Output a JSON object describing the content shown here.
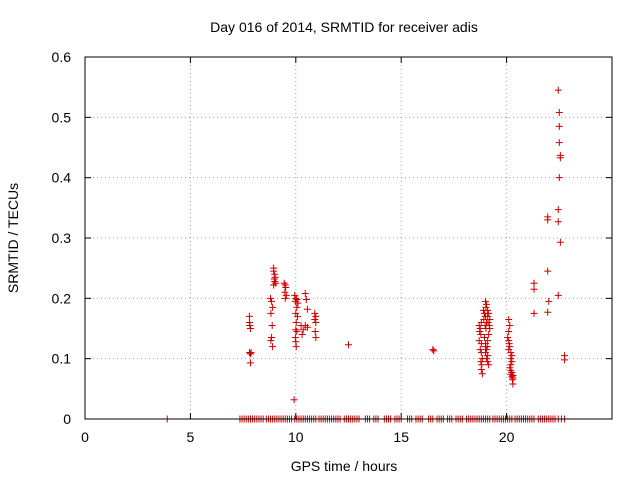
{
  "chart_data": {
    "type": "scatter",
    "title": "Day 016 of 2014, SRMTID for receiver adis",
    "xlabel": "GPS time / hours",
    "ylabel": "SRMTID / TECUs",
    "xlim": [
      0,
      25
    ],
    "ylim": [
      0,
      0.6
    ],
    "xticks": [
      "0",
      "5",
      "10",
      "15",
      "20"
    ],
    "yticks": [
      "0",
      "0.1",
      "0.2",
      "0.3",
      "0.4",
      "0.5",
      "0.6"
    ],
    "xtick_values": [
      0,
      5,
      10,
      15,
      20
    ],
    "ytick_values": [
      0,
      0.1,
      0.2,
      0.3,
      0.4,
      0.5,
      0.6
    ],
    "grid": true,
    "marker": "+",
    "color": "#cc0000",
    "series": [
      {
        "name": "SRMTID",
        "points": [
          [
            3.9,
            0
          ],
          [
            7.35,
            0
          ],
          [
            7.45,
            0
          ],
          [
            7.55,
            0
          ],
          [
            7.65,
            0
          ],
          [
            7.75,
            0
          ],
          [
            7.85,
            0
          ],
          [
            7.95,
            0
          ],
          [
            8.05,
            0
          ],
          [
            8.15,
            0
          ],
          [
            8.25,
            0
          ],
          [
            8.35,
            0
          ],
          [
            8.45,
            0
          ],
          [
            8.6,
            0
          ],
          [
            8.7,
            0
          ],
          [
            8.8,
            0
          ],
          [
            8.9,
            0
          ],
          [
            9.0,
            0
          ],
          [
            9.1,
            0
          ],
          [
            9.2,
            0
          ],
          [
            9.3,
            0
          ],
          [
            9.4,
            0
          ],
          [
            9.5,
            0
          ],
          [
            9.6,
            0
          ],
          [
            9.7,
            0
          ],
          [
            9.8,
            0
          ],
          [
            9.95,
            0
          ],
          [
            10.05,
            0
          ],
          [
            10.15,
            0
          ],
          [
            10.25,
            0
          ],
          [
            10.35,
            0
          ],
          [
            10.45,
            0
          ],
          [
            10.55,
            0
          ],
          [
            10.65,
            0
          ],
          [
            10.75,
            0
          ],
          [
            10.85,
            0
          ],
          [
            10.95,
            0
          ],
          [
            11.1,
            0
          ],
          [
            11.2,
            0
          ],
          [
            11.3,
            0
          ],
          [
            11.4,
            0
          ],
          [
            11.5,
            0
          ],
          [
            11.6,
            0
          ],
          [
            11.7,
            0
          ],
          [
            11.8,
            0
          ],
          [
            11.9,
            0
          ],
          [
            12.0,
            0
          ],
          [
            12.1,
            0
          ],
          [
            12.3,
            0
          ],
          [
            12.4,
            0
          ],
          [
            12.5,
            0
          ],
          [
            12.6,
            0
          ],
          [
            12.7,
            0
          ],
          [
            12.8,
            0
          ],
          [
            12.9,
            0
          ],
          [
            13.0,
            0
          ],
          [
            13.3,
            0
          ],
          [
            13.4,
            0
          ],
          [
            13.5,
            0
          ],
          [
            13.7,
            0
          ],
          [
            13.8,
            0
          ],
          [
            13.9,
            0
          ],
          [
            14.2,
            0
          ],
          [
            14.3,
            0
          ],
          [
            14.4,
            0
          ],
          [
            14.5,
            0
          ],
          [
            14.7,
            0
          ],
          [
            14.8,
            0
          ],
          [
            14.9,
            0
          ],
          [
            15.0,
            0
          ],
          [
            15.3,
            0
          ],
          [
            15.4,
            0
          ],
          [
            15.5,
            0
          ],
          [
            15.7,
            0
          ],
          [
            15.8,
            0
          ],
          [
            15.9,
            0
          ],
          [
            16.0,
            0
          ],
          [
            16.3,
            0
          ],
          [
            16.4,
            0
          ],
          [
            16.5,
            0
          ],
          [
            16.7,
            0
          ],
          [
            16.8,
            0
          ],
          [
            16.9,
            0
          ],
          [
            17.0,
            0
          ],
          [
            17.2,
            0
          ],
          [
            17.3,
            0
          ],
          [
            17.4,
            0
          ],
          [
            17.6,
            0
          ],
          [
            17.7,
            0
          ],
          [
            17.8,
            0
          ],
          [
            17.9,
            0
          ],
          [
            18.1,
            0
          ],
          [
            18.2,
            0
          ],
          [
            18.3,
            0
          ],
          [
            18.4,
            0
          ],
          [
            18.5,
            0
          ],
          [
            18.6,
            0
          ],
          [
            18.7,
            0
          ],
          [
            18.8,
            0
          ],
          [
            18.9,
            0
          ],
          [
            19.0,
            0
          ],
          [
            19.1,
            0
          ],
          [
            19.2,
            0
          ],
          [
            19.35,
            0
          ],
          [
            19.45,
            0
          ],
          [
            19.55,
            0
          ],
          [
            19.65,
            0
          ],
          [
            19.75,
            0
          ],
          [
            19.85,
            0
          ],
          [
            19.95,
            0
          ],
          [
            20.05,
            0
          ],
          [
            20.15,
            0
          ],
          [
            20.25,
            0
          ],
          [
            20.4,
            0
          ],
          [
            20.5,
            0
          ],
          [
            20.6,
            0
          ],
          [
            20.7,
            0
          ],
          [
            20.8,
            0
          ],
          [
            20.9,
            0
          ],
          [
            21.0,
            0
          ],
          [
            21.1,
            0
          ],
          [
            21.2,
            0
          ],
          [
            21.3,
            0
          ],
          [
            21.5,
            0
          ],
          [
            21.6,
            0
          ],
          [
            21.7,
            0
          ],
          [
            21.8,
            0
          ],
          [
            21.9,
            0
          ],
          [
            22.0,
            0
          ],
          [
            22.1,
            0
          ],
          [
            22.2,
            0
          ],
          [
            22.3,
            0
          ],
          [
            22.45,
            0
          ],
          [
            22.6,
            0
          ],
          [
            22.75,
            0
          ],
          [
            7.8,
            0.17
          ],
          [
            7.8,
            0.16
          ],
          [
            7.82,
            0.155
          ],
          [
            7.85,
            0.15
          ],
          [
            7.8,
            0.11
          ],
          [
            7.85,
            0.108
          ],
          [
            7.88,
            0.11
          ],
          [
            7.85,
            0.093
          ],
          [
            8.8,
            0.2
          ],
          [
            8.85,
            0.195
          ],
          [
            8.9,
            0.185
          ],
          [
            8.82,
            0.175
          ],
          [
            8.88,
            0.155
          ],
          [
            8.85,
            0.135
          ],
          [
            8.82,
            0.13
          ],
          [
            8.9,
            0.12
          ],
          [
            8.95,
            0.25
          ],
          [
            8.95,
            0.245
          ],
          [
            9.0,
            0.24
          ],
          [
            9.02,
            0.235
          ],
          [
            8.98,
            0.232
          ],
          [
            9.0,
            0.228
          ],
          [
            9.05,
            0.225
          ],
          [
            8.95,
            0.222
          ],
          [
            9.45,
            0.225
          ],
          [
            9.5,
            0.222
          ],
          [
            9.52,
            0.218
          ],
          [
            9.48,
            0.21
          ],
          [
            9.55,
            0.205
          ],
          [
            9.5,
            0.2
          ],
          [
            9.95,
            0.205
          ],
          [
            10.0,
            0.2
          ],
          [
            10.05,
            0.198
          ],
          [
            9.98,
            0.195
          ],
          [
            10.1,
            0.192
          ],
          [
            10.05,
            0.185
          ],
          [
            10.0,
            0.175
          ],
          [
            10.08,
            0.17
          ],
          [
            10.02,
            0.16
          ],
          [
            10.0,
            0.148
          ],
          [
            10.05,
            0.145
          ],
          [
            9.98,
            0.135
          ],
          [
            10.0,
            0.128
          ],
          [
            10.02,
            0.12
          ],
          [
            9.92,
            0.032
          ],
          [
            10.25,
            0.155
          ],
          [
            10.35,
            0.148
          ],
          [
            10.3,
            0.14
          ],
          [
            10.45,
            0.208
          ],
          [
            10.5,
            0.198
          ],
          [
            10.55,
            0.182
          ],
          [
            10.45,
            0.155
          ],
          [
            10.55,
            0.152
          ],
          [
            10.9,
            0.175
          ],
          [
            10.95,
            0.17
          ],
          [
            10.9,
            0.165
          ],
          [
            10.95,
            0.16
          ],
          [
            10.92,
            0.145
          ],
          [
            10.95,
            0.135
          ],
          [
            12.5,
            0.123
          ],
          [
            16.5,
            0.115
          ],
          [
            16.55,
            0.113
          ],
          [
            18.7,
            0.155
          ],
          [
            18.75,
            0.15
          ],
          [
            18.8,
            0.16
          ],
          [
            18.72,
            0.145
          ],
          [
            18.78,
            0.14
          ],
          [
            18.7,
            0.13
          ],
          [
            18.8,
            0.125
          ],
          [
            18.75,
            0.115
          ],
          [
            18.8,
            0.11
          ],
          [
            18.85,
            0.1
          ],
          [
            18.78,
            0.095
          ],
          [
            18.82,
            0.09
          ],
          [
            18.8,
            0.082
          ],
          [
            18.85,
            0.075
          ],
          [
            18.9,
            0.18
          ],
          [
            18.95,
            0.175
          ],
          [
            19.0,
            0.17
          ],
          [
            18.92,
            0.165
          ],
          [
            19.05,
            0.16
          ],
          [
            18.98,
            0.155
          ],
          [
            19.02,
            0.15
          ],
          [
            19.0,
            0.195
          ],
          [
            19.05,
            0.19
          ],
          [
            19.02,
            0.185
          ],
          [
            19.1,
            0.18
          ],
          [
            19.15,
            0.175
          ],
          [
            19.1,
            0.17
          ],
          [
            19.2,
            0.165
          ],
          [
            19.12,
            0.16
          ],
          [
            19.18,
            0.155
          ],
          [
            19.2,
            0.15
          ],
          [
            19.15,
            0.14
          ],
          [
            19.1,
            0.13
          ],
          [
            19.0,
            0.12
          ],
          [
            19.05,
            0.115
          ],
          [
            19.0,
            0.11
          ],
          [
            19.1,
            0.105
          ],
          [
            19.05,
            0.1
          ],
          [
            19.1,
            0.095
          ],
          [
            19.15,
            0.09
          ],
          [
            18.95,
            0.135
          ],
          [
            19.0,
            0.125
          ],
          [
            19.08,
            0.12
          ],
          [
            20.1,
            0.165
          ],
          [
            20.15,
            0.155
          ],
          [
            20.1,
            0.145
          ],
          [
            20.05,
            0.135
          ],
          [
            20.1,
            0.13
          ],
          [
            20.12,
            0.125
          ],
          [
            20.15,
            0.12
          ],
          [
            20.1,
            0.115
          ],
          [
            20.2,
            0.11
          ],
          [
            20.25,
            0.105
          ],
          [
            20.2,
            0.1
          ],
          [
            20.25,
            0.095
          ],
          [
            20.2,
            0.09
          ],
          [
            20.15,
            0.085
          ],
          [
            20.2,
            0.08
          ],
          [
            20.25,
            0.077
          ],
          [
            20.2,
            0.074
          ],
          [
            20.3,
            0.072
          ],
          [
            20.25,
            0.07
          ],
          [
            20.3,
            0.068
          ],
          [
            20.28,
            0.065
          ],
          [
            20.3,
            0.058
          ],
          [
            21.3,
            0.225
          ],
          [
            21.3,
            0.215
          ],
          [
            21.3,
            0.175
          ],
          [
            21.95,
            0.335
          ],
          [
            21.95,
            0.33
          ],
          [
            21.95,
            0.245
          ],
          [
            22.0,
            0.195
          ],
          [
            21.95,
            0.177
          ],
          [
            22.45,
            0.545
          ],
          [
            22.5,
            0.508
          ],
          [
            22.5,
            0.485
          ],
          [
            22.5,
            0.458
          ],
          [
            22.55,
            0.437
          ],
          [
            22.55,
            0.433
          ],
          [
            22.5,
            0.4
          ],
          [
            22.45,
            0.347
          ],
          [
            22.45,
            0.327
          ],
          [
            22.55,
            0.293
          ],
          [
            22.45,
            0.205
          ],
          [
            22.75,
            0.105
          ],
          [
            22.75,
            0.098
          ]
        ]
      }
    ]
  }
}
